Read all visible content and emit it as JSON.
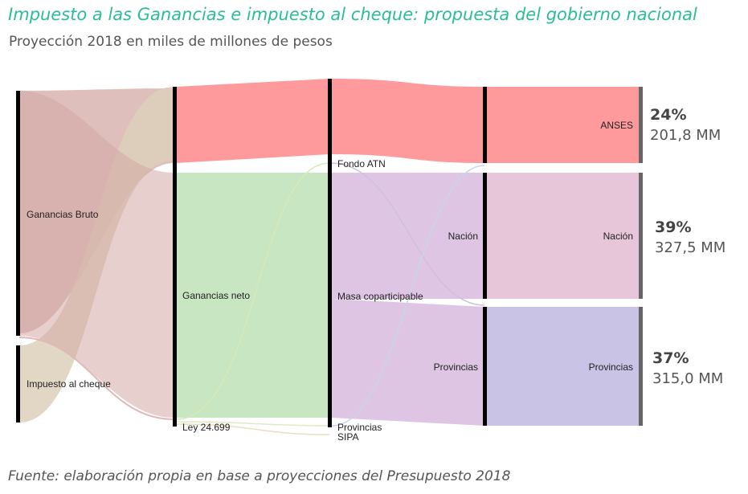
{
  "title": "Impuesto a las Ganancias e impuesto al cheque: propuesta del gobierno nacional",
  "subtitle": "Proyección 2018 en miles de millones de pesos",
  "source": "Fuente: elaboración propia en base a proyecciones del Presupuesto 2018",
  "labels": {
    "ganancias_bruto": "Ganancias Bruto",
    "impuesto_cheque": "Impuesto al cheque",
    "ganancias_neto": "Ganancias neto",
    "ley": "Ley 24.699",
    "fondo_atn": "Fondo ATN",
    "masa": "Masa coparticipable",
    "provincias_small": "Provincias",
    "sipa": "SIPA",
    "nacion_mid": "Nación",
    "provincias_mid": "Provincias",
    "anses": "ANSES",
    "nacion_final": "Nación",
    "provincias_final": "Provincias"
  },
  "results": [
    {
      "name": "ANSES",
      "pct": "24%",
      "amount": "201,8 MM"
    },
    {
      "name": "Nación",
      "pct": "39%",
      "amount": "327,5 MM"
    },
    {
      "name": "Provincias",
      "pct": "37%",
      "amount": "315,0 MM"
    }
  ],
  "colors": {
    "title": "#2bbd9a",
    "ganancias_flow": "#d8b4b0",
    "cheque_flow": "#ddd0bb",
    "anses": "#ff9a9c",
    "ganancias_neto": "#c8e6c1",
    "masa": "#dec5e4",
    "nacion": "#e6c6d8",
    "provincias": "#c9c3e6",
    "node": "#000000",
    "result_bar": "#666666"
  }
}
